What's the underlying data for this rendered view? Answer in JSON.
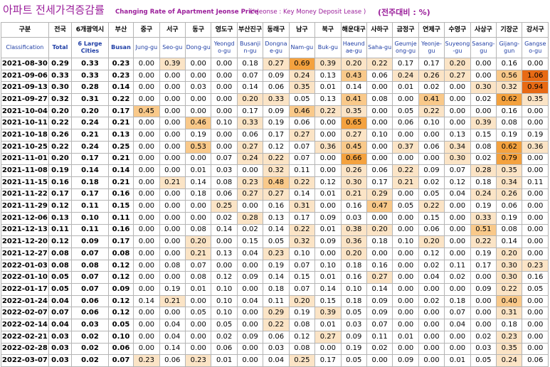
{
  "title": {
    "korean": "아파트 전세가격증감률",
    "english": "Changing Rate of Apartment Jeonse Price",
    "note": "(* Jeonse : Key Money Deposit Lease )",
    "unit": "(전주대비 : %)"
  },
  "header": {
    "classification_ko": "구분",
    "classification_en": "Classification",
    "total_ko": "전국",
    "total_en": "Total",
    "six_cities_ko": "6개광역시",
    "six_cities_en": "6 Large Cities",
    "busan_ko": "부산",
    "busan_en": "Busan",
    "districts": [
      {
        "ko": "중구",
        "en": "Jung-gu"
      },
      {
        "ko": "서구",
        "en": "Seo-gu"
      },
      {
        "ko": "동구",
        "en": "Dong-gu"
      },
      {
        "ko": "영도구",
        "en": "Yeongd o-gu"
      },
      {
        "ko": "부산진구",
        "en": "Busanji n-gu"
      },
      {
        "ko": "동래구",
        "en": "Dongna e-gu"
      },
      {
        "ko": "남구",
        "en": "Nam-gu"
      },
      {
        "ko": "북구",
        "en": "Buk-gu"
      },
      {
        "ko": "해운대구",
        "en": "Haeund ae-gu"
      },
      {
        "ko": "사하구",
        "en": "Saha-gu"
      },
      {
        "ko": "금정구",
        "en": "Geumje ong-gu"
      },
      {
        "ko": "연제구",
        "en": "Yeonje-gu"
      },
      {
        "ko": "수영구",
        "en": "Suyeong -gu"
      },
      {
        "ko": "사상구",
        "en": "Sasang-gu"
      },
      {
        "ko": "기장군",
        "en": "Gijang-gun"
      },
      {
        "ko": "강서구",
        "en": "Gangse o-gu"
      }
    ]
  },
  "rows": [
    {
      "date": "2021-08-30",
      "total": "0.29",
      "six": "0.33",
      "busan": "0.23",
      "d": [
        "0.00",
        "0.39",
        "0.00",
        "0.00",
        "0.18",
        "0.27",
        "0.69",
        "0.39",
        "0.20",
        "0.22",
        "0.17",
        "0.17",
        "0.20",
        "0.00",
        "0.16",
        "0.00"
      ]
    },
    {
      "date": "2021-09-06",
      "total": "0.33",
      "six": "0.33",
      "busan": "0.23",
      "d": [
        "0.00",
        "0.00",
        "0.00",
        "0.00",
        "0.07",
        "0.09",
        "0.24",
        "0.13",
        "0.43",
        "0.06",
        "0.24",
        "0.26",
        "0.27",
        "0.00",
        "0.56",
        "1.06"
      ]
    },
    {
      "date": "2021-09-13",
      "total": "0.30",
      "six": "0.28",
      "busan": "0.14",
      "d": [
        "0.00",
        "0.00",
        "0.03",
        "0.00",
        "0.14",
        "0.06",
        "0.35",
        "0.01",
        "0.14",
        "0.00",
        "0.01",
        "0.02",
        "0.00",
        "0.30",
        "0.32",
        "0.94"
      ]
    },
    {
      "date": "2021-09-27",
      "total": "0.32",
      "six": "0.31",
      "busan": "0.22",
      "d": [
        "0.00",
        "0.00",
        "0.00",
        "0.00",
        "0.20",
        "0.33",
        "0.05",
        "0.13",
        "0.41",
        "0.08",
        "0.00",
        "0.41",
        "0.00",
        "0.02",
        "0.62",
        "0.35"
      ]
    },
    {
      "date": "2021-10-04",
      "total": "0.20",
      "six": "0.20",
      "busan": "0.17",
      "d": [
        "0.45",
        "0.00",
        "0.00",
        "0.00",
        "0.17",
        "0.09",
        "0.46",
        "0.22",
        "0.35",
        "0.00",
        "0.05",
        "0.22",
        "0.00",
        "0.00",
        "0.16",
        "0.00"
      ]
    },
    {
      "date": "2021-10-11",
      "total": "0.22",
      "six": "0.24",
      "busan": "0.21",
      "d": [
        "0.00",
        "0.00",
        "0.46",
        "0.10",
        "0.33",
        "0.19",
        "0.06",
        "0.00",
        "0.65",
        "0.00",
        "0.06",
        "0.10",
        "0.00",
        "0.39",
        "0.08",
        "0.00"
      ]
    },
    {
      "date": "2021-10-18",
      "total": "0.26",
      "six": "0.21",
      "busan": "0.13",
      "d": [
        "0.00",
        "0.00",
        "0.19",
        "0.00",
        "0.06",
        "0.17",
        "0.27",
        "0.00",
        "0.27",
        "0.10",
        "0.00",
        "0.00",
        "0.13",
        "0.15",
        "0.19",
        "0.19"
      ]
    },
    {
      "date": "2021-10-25",
      "total": "0.22",
      "six": "0.24",
      "busan": "0.25",
      "d": [
        "0.00",
        "0.00",
        "0.53",
        "0.00",
        "0.27",
        "0.12",
        "0.07",
        "0.36",
        "0.45",
        "0.00",
        "0.37",
        "0.06",
        "0.34",
        "0.08",
        "0.62",
        "0.36"
      ]
    },
    {
      "date": "2021-11-01",
      "total": "0.20",
      "six": "0.17",
      "busan": "0.21",
      "d": [
        "0.00",
        "0.00",
        "0.00",
        "0.07",
        "0.24",
        "0.22",
        "0.07",
        "0.00",
        "0.66",
        "0.00",
        "0.00",
        "0.00",
        "0.30",
        "0.02",
        "0.79",
        "0.00"
      ]
    },
    {
      "date": "2021-11-08",
      "total": "0.19",
      "six": "0.14",
      "busan": "0.14",
      "d": [
        "0.00",
        "0.00",
        "0.01",
        "0.03",
        "0.00",
        "0.32",
        "0.11",
        "0.00",
        "0.26",
        "0.06",
        "0.22",
        "0.09",
        "0.07",
        "0.28",
        "0.35",
        "0.00"
      ]
    },
    {
      "date": "2021-11-15",
      "total": "0.16",
      "six": "0.18",
      "busan": "0.21",
      "d": [
        "0.00",
        "0.21",
        "0.14",
        "0.08",
        "0.23",
        "0.48",
        "0.22",
        "0.12",
        "0.30",
        "0.17",
        "0.21",
        "0.02",
        "0.12",
        "0.18",
        "0.34",
        "0.11"
      ]
    },
    {
      "date": "2021-11-22",
      "total": "0.17",
      "six": "0.17",
      "busan": "0.16",
      "d": [
        "0.00",
        "0.00",
        "0.18",
        "0.06",
        "0.27",
        "0.27",
        "0.14",
        "0.01",
        "0.21",
        "0.29",
        "0.00",
        "0.05",
        "0.04",
        "0.24",
        "0.26",
        "0.00"
      ]
    },
    {
      "date": "2021-11-29",
      "total": "0.12",
      "six": "0.11",
      "busan": "0.15",
      "d": [
        "0.00",
        "0.00",
        "0.00",
        "0.25",
        "0.00",
        "0.16",
        "0.31",
        "0.00",
        "0.16",
        "0.47",
        "0.05",
        "0.22",
        "0.00",
        "0.19",
        "0.06",
        "0.00"
      ]
    },
    {
      "date": "2021-12-06",
      "total": "0.13",
      "six": "0.10",
      "busan": "0.11",
      "d": [
        "0.00",
        "0.00",
        "0.00",
        "0.02",
        "0.28",
        "0.13",
        "0.17",
        "0.09",
        "0.03",
        "0.00",
        "0.00",
        "0.15",
        "0.00",
        "0.33",
        "0.19",
        "0.00"
      ]
    },
    {
      "date": "2021-12-13",
      "total": "0.11",
      "six": "0.11",
      "busan": "0.16",
      "d": [
        "0.00",
        "0.00",
        "0.08",
        "0.14",
        "0.02",
        "0.14",
        "0.22",
        "0.01",
        "0.38",
        "0.20",
        "0.00",
        "0.06",
        "0.00",
        "0.51",
        "0.08",
        "0.00"
      ]
    },
    {
      "date": "2021-12-20",
      "total": "0.12",
      "six": "0.09",
      "busan": "0.17",
      "d": [
        "0.00",
        "0.00",
        "0.20",
        "0.00",
        "0.15",
        "0.05",
        "0.32",
        "0.09",
        "0.36",
        "0.18",
        "0.10",
        "0.20",
        "0.00",
        "0.22",
        "0.14",
        "0.00"
      ]
    },
    {
      "date": "2021-12-27",
      "total": "0.08",
      "six": "0.07",
      "busan": "0.08",
      "d": [
        "0.00",
        "0.00",
        "0.21",
        "0.13",
        "0.04",
        "0.23",
        "0.10",
        "0.00",
        "0.20",
        "0.00",
        "0.00",
        "0.12",
        "0.00",
        "0.19",
        "0.20",
        "0.00"
      ]
    },
    {
      "date": "2022-01-03",
      "total": "0.08",
      "six": "0.08",
      "busan": "0.12",
      "d": [
        "0.00",
        "0.08",
        "0.07",
        "0.00",
        "0.00",
        "0.19",
        "0.07",
        "0.10",
        "0.18",
        "0.16",
        "0.00",
        "0.02",
        "0.11",
        "0.17",
        "0.30",
        "0.23"
      ]
    },
    {
      "date": "2022-01-10",
      "total": "0.05",
      "six": "0.07",
      "busan": "0.12",
      "d": [
        "0.00",
        "0.00",
        "0.08",
        "0.12",
        "0.09",
        "0.14",
        "0.15",
        "0.01",
        "0.16",
        "0.27",
        "0.00",
        "0.04",
        "0.02",
        "0.00",
        "0.30",
        "0.16"
      ]
    },
    {
      "date": "2022-01-17",
      "total": "0.05",
      "six": "0.07",
      "busan": "0.09",
      "d": [
        "0.00",
        "0.19",
        "0.01",
        "0.10",
        "0.00",
        "0.18",
        "0.07",
        "0.14",
        "0.10",
        "0.14",
        "0.00",
        "0.00",
        "0.00",
        "0.09",
        "0.22",
        "0.05"
      ]
    },
    {
      "date": "2022-01-24",
      "total": "0.04",
      "six": "0.06",
      "busan": "0.12",
      "d": [
        "0.14",
        "0.21",
        "0.00",
        "0.10",
        "0.04",
        "0.11",
        "0.20",
        "0.15",
        "0.18",
        "0.09",
        "0.00",
        "0.02",
        "0.18",
        "0.00",
        "0.40",
        "0.00"
      ]
    },
    {
      "date": "2022-02-07",
      "total": "0.07",
      "six": "0.06",
      "busan": "0.12",
      "d": [
        "0.00",
        "0.00",
        "0.05",
        "0.10",
        "0.00",
        "0.29",
        "0.19",
        "0.39",
        "0.05",
        "0.09",
        "0.00",
        "0.00",
        "0.07",
        "0.00",
        "0.31",
        "0.00"
      ]
    },
    {
      "date": "2022-02-14",
      "total": "0.04",
      "six": "0.03",
      "busan": "0.05",
      "d": [
        "0.00",
        "0.04",
        "0.00",
        "0.05",
        "0.00",
        "0.22",
        "0.08",
        "0.01",
        "0.03",
        "0.07",
        "0.00",
        "0.00",
        "0.04",
        "0.00",
        "0.18",
        "0.00"
      ]
    },
    {
      "date": "2022-02-21",
      "total": "0.03",
      "six": "0.02",
      "busan": "0.10",
      "d": [
        "0.00",
        "0.04",
        "0.00",
        "0.02",
        "0.09",
        "0.06",
        "0.12",
        "0.27",
        "0.09",
        "0.11",
        "0.01",
        "0.00",
        "0.00",
        "0.02",
        "0.23",
        "0.00"
      ]
    },
    {
      "date": "2022-02-28",
      "total": "0.03",
      "six": "0.02",
      "busan": "0.06",
      "d": [
        "0.00",
        "0.14",
        "0.00",
        "0.06",
        "0.00",
        "0.03",
        "0.08",
        "0.00",
        "0.19",
        "0.02",
        "0.00",
        "0.00",
        "0.00",
        "0.03",
        "0.35",
        "0.00"
      ]
    },
    {
      "date": "2022-03-07",
      "total": "0.03",
      "six": "0.02",
      "busan": "0.07",
      "d": [
        "0.23",
        "0.06",
        "0.23",
        "0.01",
        "0.00",
        "0.04",
        "0.25",
        "0.17",
        "0.05",
        "0.00",
        "0.09",
        "0.00",
        "0.01",
        "0.05",
        "0.24",
        "0.06"
      ]
    }
  ],
  "colors": {
    "title": "#9b1f9b",
    "english_header": "#1f3ea5",
    "level1": "#fbe4c6",
    "level2": "#f9c98a",
    "level3": "#f4a23f",
    "level4": "#e86a14"
  }
}
